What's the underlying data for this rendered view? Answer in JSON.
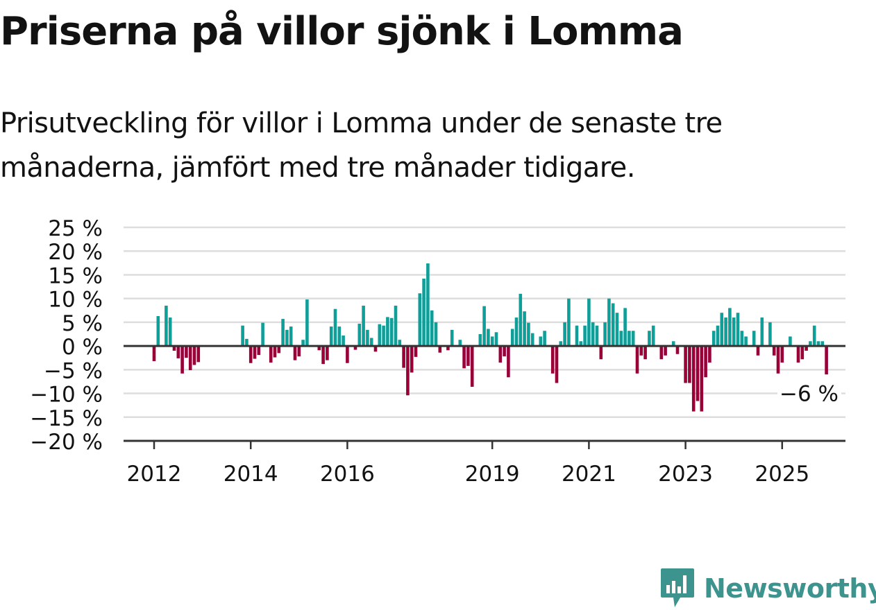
{
  "header": {
    "title": "Priserna på villor sjönk i Lomma",
    "subtitle": "Prisutveckling för villor i Lomma under de senaste tre månaderna, jämfört med tre månader tidigare."
  },
  "colors": {
    "positive": "#109e98",
    "negative": "#9a0038",
    "axis": "#333333",
    "grid": "#dddddd",
    "brand": "#3d948f"
  },
  "brand": {
    "name": "Newsworthy",
    "icon": "bar-chart-bubble-icon"
  },
  "chart_data": {
    "type": "bar",
    "x_unit": "month",
    "x_start": "2012-01",
    "y_ticks": [
      "25 %",
      "20 %",
      "15 %",
      "10 %",
      "5 %",
      "0 %",
      "−5 %",
      "−10 %",
      "−15 %",
      "−20 %"
    ],
    "y_tick_values": [
      25,
      20,
      15,
      10,
      5,
      0,
      -5,
      -10,
      -15,
      -20
    ],
    "ylim": [
      -20,
      25
    ],
    "x_ticks": [
      {
        "label": "2012",
        "month": "2012-01"
      },
      {
        "label": "2014",
        "month": "2014-01"
      },
      {
        "label": "2016",
        "month": "2016-01"
      },
      {
        "label": "2019",
        "month": "2019-01"
      },
      {
        "label": "2021",
        "month": "2021-01"
      },
      {
        "label": "2023",
        "month": "2023-01"
      },
      {
        "label": "2025",
        "month": "2025-01"
      }
    ],
    "annotation": {
      "text": "−6 %",
      "month": "2025-08",
      "value": -6
    },
    "values": [
      -3.2,
      6.3,
      null,
      8.5,
      6.0,
      -1.0,
      -2.6,
      -5.8,
      -2.5,
      -5.1,
      -4.0,
      -3.4,
      null,
      null,
      null,
      null,
      null,
      null,
      null,
      null,
      null,
      null,
      4.3,
      1.5,
      -3.6,
      -2.7,
      -1.9,
      4.9,
      null,
      -3.5,
      -2.4,
      -1.5,
      5.7,
      3.4,
      4.1,
      -3.0,
      -2.2,
      1.3,
      9.8,
      null,
      null,
      -0.9,
      -3.8,
      -3.0,
      4.1,
      7.8,
      4.1,
      2.2,
      -3.6,
      null,
      -0.8,
      4.7,
      8.5,
      3.4,
      1.7,
      -1.2,
      4.6,
      4.3,
      6.1,
      5.9,
      8.5,
      1.3,
      -4.6,
      -10.4,
      -5.6,
      -2.3,
      11.1,
      14.2,
      17.4,
      7.5,
      5.0,
      -1.4,
      null,
      -0.9,
      3.4,
      null,
      1.3,
      -4.7,
      -4.2,
      -8.6,
      null,
      2.5,
      8.4,
      3.6,
      2.0,
      2.9,
      -3.5,
      -2.2,
      -6.6,
      3.6,
      6.0,
      11.0,
      7.3,
      4.9,
      2.7,
      null,
      2.0,
      3.2,
      null,
      -5.8,
      -7.8,
      1.0,
      5.0,
      10.0,
      null,
      4.3,
      1.0,
      4.3,
      10.0,
      5.0,
      4.3,
      -2.8,
      5.0,
      10.0,
      9.0,
      7.0,
      3.2,
      8.0,
      3.2,
      3.2,
      -5.8,
      -2.0,
      -2.8,
      3.2,
      4.3,
      null,
      -2.8,
      -2.0,
      null,
      1.0,
      -1.7,
      null,
      -7.8,
      -7.8,
      -13.8,
      -11.6,
      -13.8,
      -6.6,
      -3.5,
      3.2,
      4.3,
      7.0,
      6.0,
      8.0,
      6.0,
      7.0,
      3.2,
      2.0,
      null,
      3.2,
      -2.0,
      6.0,
      null,
      5.0,
      -2.0,
      -5.8,
      -3.5,
      null,
      2.0,
      null,
      -3.5,
      -2.8,
      -1.0,
      1.0,
      4.3,
      1.0,
      1.0,
      -6.0
    ]
  }
}
